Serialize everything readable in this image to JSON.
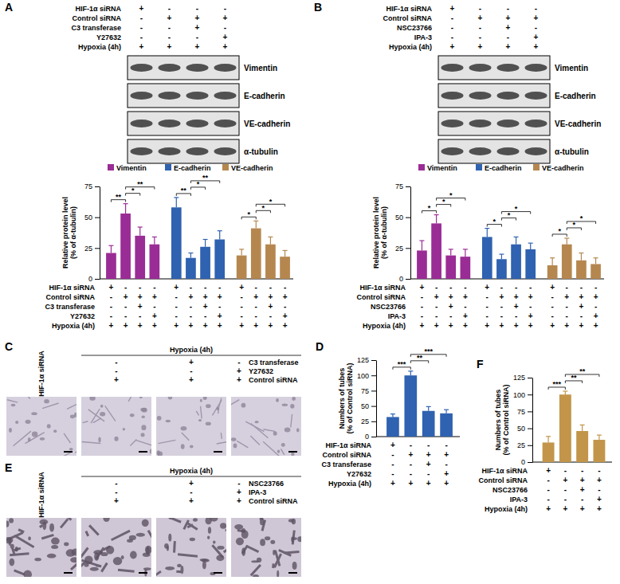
{
  "panel_letters": [
    "A",
    "B",
    "C",
    "D",
    "E",
    "F"
  ],
  "blots": [
    {
      "conditions": [
        {
          "label": "HIF-1α siRNA",
          "signs": [
            "+",
            "-",
            "-",
            "-"
          ]
        },
        {
          "label": "Control siRNA",
          "signs": [
            "-",
            "+",
            "+",
            "+"
          ]
        },
        {
          "label": "C3 transferase",
          "signs": [
            "-",
            "-",
            "+",
            "-"
          ]
        },
        {
          "label": "Y27632",
          "signs": [
            "-",
            "-",
            "-",
            "+"
          ]
        },
        {
          "label": "Hypoxia (4h)",
          "signs": [
            "+",
            "+",
            "+",
            "+"
          ]
        }
      ],
      "bands": [
        "Vimentin",
        "E-cadherin",
        "VE-cadherin",
        "α-tubulin"
      ]
    },
    {
      "conditions": [
        {
          "label": "HIF-1α siRNA",
          "signs": [
            "+",
            "-",
            "-",
            "-"
          ]
        },
        {
          "label": "Control siRNA",
          "signs": [
            "-",
            "+",
            "+",
            "+"
          ]
        },
        {
          "label": "NSC23766",
          "signs": [
            "-",
            "-",
            "+",
            "-"
          ]
        },
        {
          "label": "IPA-3",
          "signs": [
            "-",
            "-",
            "-",
            "+"
          ]
        },
        {
          "label": "Hypoxia (4h)",
          "signs": [
            "+",
            "+",
            "+",
            "+"
          ]
        }
      ],
      "bands": [
        "Vimentin",
        "E-cadherin",
        "VE-cadherin",
        "α-tubulin"
      ]
    }
  ],
  "micrographs": [
    {
      "header": "Hypoxia (4h)",
      "side_label": "HIF-1α siRNA",
      "rows": [
        {
          "label": "C3 transferase",
          "signs": [
            "-",
            "+",
            "-"
          ]
        },
        {
          "label": "Y27632",
          "signs": [
            "-",
            "-",
            "+"
          ]
        },
        {
          "label": "Control siRNA",
          "signs": [
            "+",
            "+",
            "+"
          ]
        }
      ]
    },
    {
      "header": "Hypoxia (4h)",
      "side_label": "HIF-1α siRNA",
      "rows": [
        {
          "label": "NSC23766",
          "signs": [
            "-",
            "+",
            "-"
          ]
        },
        {
          "label": "IPA-3",
          "signs": [
            "-",
            "-",
            "+"
          ]
        },
        {
          "label": "Control siRNA",
          "signs": [
            "+",
            "+",
            "+"
          ]
        }
      ]
    }
  ],
  "chart_data": [
    {
      "type": "bar",
      "y_label": [
        "Relative protein level",
        "(% of α-tubulin)"
      ],
      "categories": [
        null,
        null,
        null,
        null
      ],
      "ylim": [
        0,
        75
      ],
      "yticks": [
        0,
        25,
        50,
        75
      ],
      "legend": "top",
      "series": [
        {
          "name": "Vimentin",
          "color": "#9a2c96",
          "values": [
            21,
            53,
            35,
            28
          ],
          "errors": [
            6,
            8,
            7,
            6
          ],
          "significance": [
            "**",
            null,
            "*",
            "**"
          ]
        },
        {
          "name": "E-cadherin",
          "color": "#2f62b0",
          "values": [
            58,
            17,
            26,
            32
          ],
          "errors": [
            8,
            4,
            6,
            7
          ],
          "significance": [
            "**",
            null,
            "*",
            "**"
          ]
        },
        {
          "name": "VE-cadherin",
          "color": "#b5874f",
          "values": [
            19,
            41,
            28,
            18
          ],
          "errors": [
            5,
            6,
            6,
            5
          ],
          "significance": [
            "*",
            null,
            "*",
            "*"
          ]
        }
      ],
      "conditions": [
        {
          "label": "HIF-1α siRNA",
          "signs": [
            "+",
            "-",
            "-",
            "-"
          ]
        },
        {
          "label": "Control siRNA",
          "signs": [
            "-",
            "+",
            "+",
            "+"
          ]
        },
        {
          "label": "C3 transferase",
          "signs": [
            "-",
            "-",
            "+",
            "-"
          ]
        },
        {
          "label": "Y27632",
          "signs": [
            "-",
            "-",
            "-",
            "+"
          ]
        },
        {
          "label": "Hypoxia (4h)",
          "signs": [
            "+",
            "+",
            "+",
            "+"
          ]
        }
      ]
    },
    {
      "type": "bar",
      "y_label": [
        "Relative protein level",
        "(% of α-tubulin)"
      ],
      "categories": [
        null,
        null,
        null,
        null
      ],
      "ylim": [
        0,
        75
      ],
      "yticks": [
        0,
        25,
        50,
        75
      ],
      "legend": "top",
      "series": [
        {
          "name": "Vimentin",
          "color": "#9a2c96",
          "values": [
            23,
            45,
            19,
            18
          ],
          "errors": [
            8,
            7,
            5,
            6
          ],
          "significance": [
            "*",
            null,
            "*",
            "*"
          ]
        },
        {
          "name": "E-cadherin",
          "color": "#2f62b0",
          "values": [
            34,
            16,
            28,
            24
          ],
          "errors": [
            7,
            4,
            6,
            5
          ],
          "significance": [
            "*",
            null,
            "*",
            "*"
          ]
        },
        {
          "name": "VE-cadherin",
          "color": "#b5874f",
          "values": [
            11,
            28,
            15,
            12
          ],
          "errors": [
            6,
            5,
            6,
            5
          ],
          "significance": [
            "*",
            null,
            "*",
            "*"
          ]
        }
      ],
      "conditions": [
        {
          "label": "HIF-1α siRNA",
          "signs": [
            "+",
            "-",
            "-",
            "-"
          ]
        },
        {
          "label": "Control siRNA",
          "signs": [
            "-",
            "+",
            "+",
            "+"
          ]
        },
        {
          "label": "NSC23766",
          "signs": [
            "-",
            "-",
            "+",
            "-"
          ]
        },
        {
          "label": "IPA-3",
          "signs": [
            "-",
            "-",
            "-",
            "+"
          ]
        },
        {
          "label": "Hypoxia (4h)",
          "signs": [
            "+",
            "+",
            "+",
            "+"
          ]
        }
      ]
    },
    {
      "type": "bar",
      "y_label": [
        "Numbers of tubes",
        "(% of Control siRNA)"
      ],
      "categories": [
        null,
        null,
        null,
        null
      ],
      "ylim": [
        0,
        125
      ],
      "yticks": [
        0,
        25,
        50,
        75,
        100,
        125
      ],
      "series": [
        {
          "color": "#2f62b0",
          "values": [
            32,
            100,
            42,
            38
          ],
          "errors": [
            5,
            7,
            7,
            6
          ],
          "significance": [
            "***",
            null,
            "**",
            "***"
          ]
        }
      ],
      "conditions": [
        {
          "label": "HIF-1α siRNA",
          "signs": [
            "+",
            "-",
            "-",
            "-"
          ]
        },
        {
          "label": "Control siRNA",
          "signs": [
            "-",
            "+",
            "+",
            "+"
          ]
        },
        {
          "label": "C3 transferase",
          "signs": [
            "-",
            "-",
            "+",
            "-"
          ]
        },
        {
          "label": "Y27632",
          "signs": [
            "-",
            "-",
            "-",
            "+"
          ]
        },
        {
          "label": "Hypoxia (4h)",
          "signs": [
            "+",
            "+",
            "+",
            "+"
          ]
        }
      ]
    },
    {
      "type": "bar",
      "y_label": [
        "Numbers of tubes",
        "(% of Control siRNA)"
      ],
      "categories": [
        null,
        null,
        null,
        null
      ],
      "ylim": [
        0,
        125
      ],
      "yticks": [
        0,
        25,
        50,
        75,
        100,
        125
      ],
      "series": [
        {
          "color": "#c2954a",
          "values": [
            29,
            100,
            46,
            33
          ],
          "errors": [
            9,
            5,
            9,
            7
          ],
          "significance": [
            "***",
            null,
            "**",
            "**"
          ]
        }
      ],
      "conditions": [
        {
          "label": "HIF-1α siRNA",
          "signs": [
            "+",
            "-",
            "-",
            "-"
          ]
        },
        {
          "label": "Control siRNA",
          "signs": [
            "-",
            "+",
            "+",
            "+"
          ]
        },
        {
          "label": "NSC23766",
          "signs": [
            "-",
            "-",
            "+",
            "-"
          ]
        },
        {
          "label": "IPA-3",
          "signs": [
            "-",
            "-",
            "-",
            "+"
          ]
        },
        {
          "label": "Hypoxia (4h)",
          "signs": [
            "+",
            "+",
            "+",
            "+"
          ]
        }
      ]
    }
  ]
}
